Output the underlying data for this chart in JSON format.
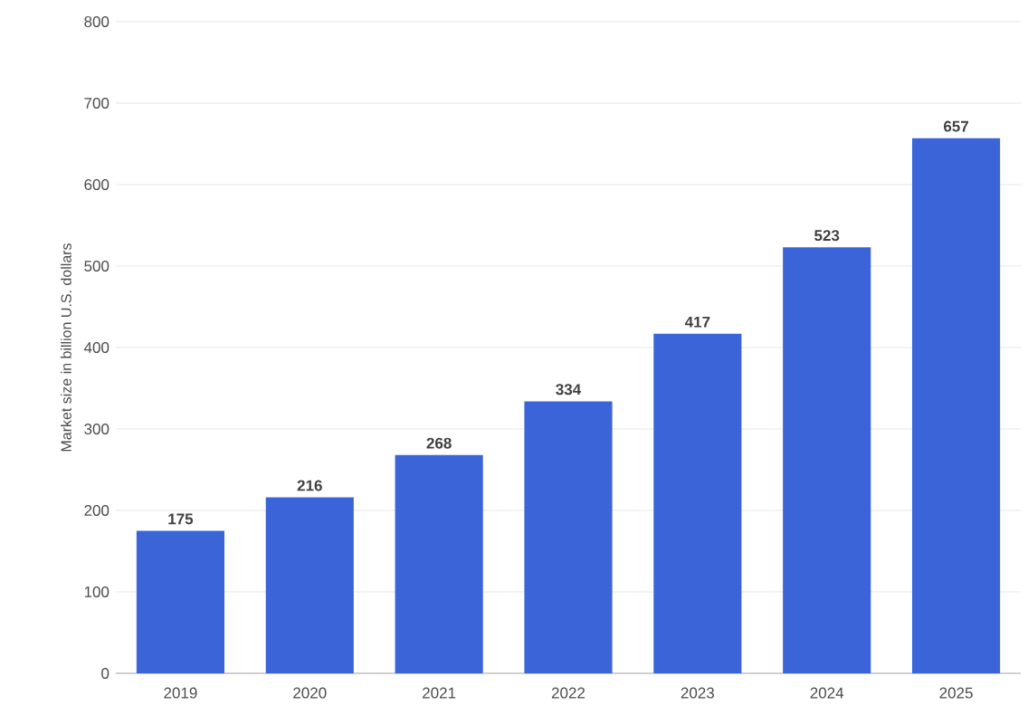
{
  "chart_data": {
    "type": "bar",
    "ylabel": "Market size in billion U.S. dollars",
    "categories": [
      "2019",
      "2020",
      "2021",
      "2022",
      "2023",
      "2024",
      "2025"
    ],
    "values": [
      175,
      216,
      268,
      334,
      417,
      523,
      657
    ],
    "color": "#3a64d8",
    "ylim": [
      0,
      800
    ],
    "yticks": [
      0,
      100,
      200,
      300,
      400,
      500,
      600,
      700,
      800
    ],
    "grid": "y",
    "data_labels": true
  }
}
